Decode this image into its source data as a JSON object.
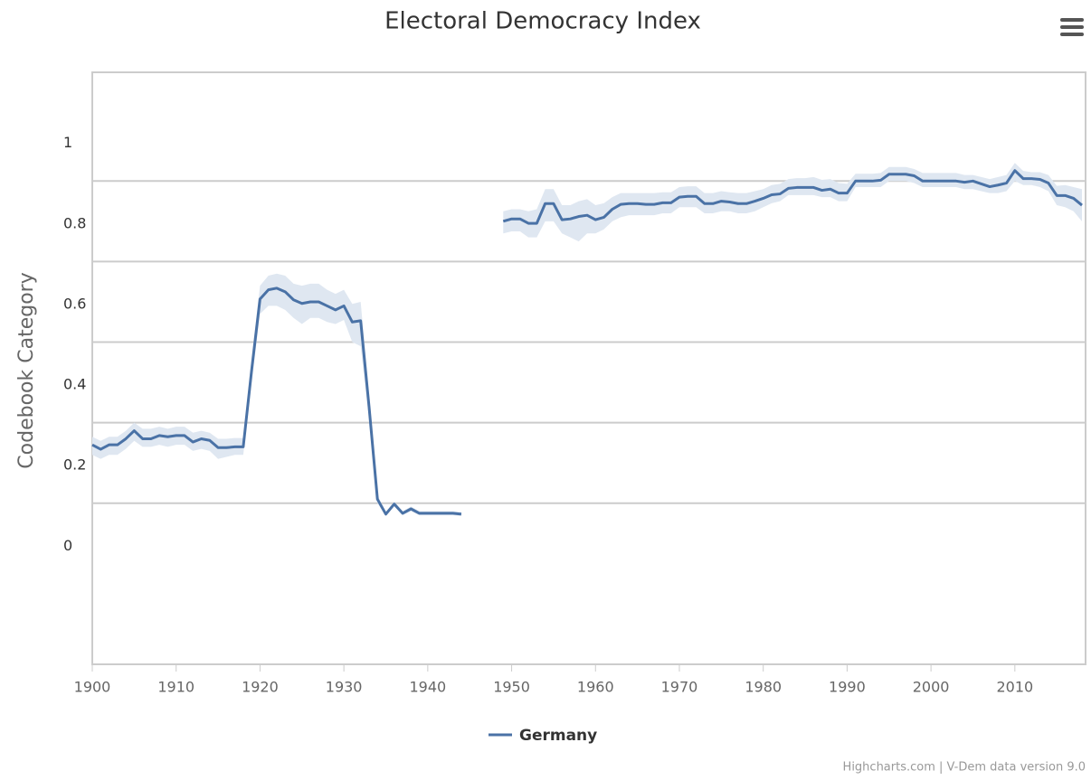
{
  "chart_data": {
    "type": "line",
    "title": "Electoral Democracy Index",
    "y_label": "Codebook Category",
    "credits": "Highcharts.com | V-Dem data version 9.0",
    "x": [
      1900,
      1901,
      1902,
      1903,
      1904,
      1905,
      1906,
      1907,
      1908,
      1909,
      1910,
      1911,
      1912,
      1913,
      1914,
      1915,
      1916,
      1917,
      1918,
      1919,
      1920,
      1921,
      1922,
      1923,
      1924,
      1925,
      1926,
      1927,
      1928,
      1929,
      1930,
      1931,
      1932,
      1933,
      1934,
      1935,
      1936,
      1937,
      1938,
      1939,
      1940,
      1941,
      1942,
      1943,
      1944,
      1945,
      1946,
      1947,
      1948,
      1949,
      1950,
      1951,
      1952,
      1953,
      1954,
      1955,
      1956,
      1957,
      1958,
      1959,
      1960,
      1961,
      1962,
      1963,
      1964,
      1965,
      1966,
      1967,
      1968,
      1969,
      1970,
      1971,
      1972,
      1973,
      1974,
      1975,
      1976,
      1977,
      1978,
      1979,
      1980,
      1981,
      1982,
      1983,
      1984,
      1985,
      1986,
      1987,
      1988,
      1989,
      1990,
      1991,
      1992,
      1993,
      1994,
      1995,
      1996,
      1997,
      1998,
      1999,
      2000,
      2001,
      2002,
      2003,
      2004,
      2005,
      2006,
      2007,
      2008,
      2009,
      2010,
      2011,
      2012,
      2013,
      2014,
      2015,
      2016,
      2017,
      2018
    ],
    "series": [
      {
        "name": "Germany",
        "color": "#4a72a6",
        "band_color": "#dfe7f1",
        "values": [
          0.245,
          0.234,
          0.245,
          0.245,
          0.26,
          0.28,
          0.26,
          0.26,
          0.268,
          0.265,
          0.268,
          0.268,
          0.252,
          0.26,
          0.256,
          0.238,
          0.238,
          0.24,
          0.24,
          0.43,
          0.607,
          0.63,
          0.634,
          0.625,
          0.605,
          0.596,
          0.6,
          0.6,
          0.59,
          0.58,
          0.59,
          0.55,
          0.553,
          0.34,
          0.11,
          0.073,
          0.098,
          0.075,
          0.086,
          0.075,
          0.075,
          0.075,
          0.075,
          0.075,
          0.073,
          null,
          null,
          null,
          null,
          0.8,
          0.806,
          0.806,
          0.795,
          0.795,
          0.844,
          0.844,
          0.804,
          0.806,
          0.812,
          0.815,
          0.804,
          0.81,
          0.83,
          0.842,
          0.844,
          0.844,
          0.842,
          0.842,
          0.846,
          0.846,
          0.86,
          0.862,
          0.862,
          0.844,
          0.844,
          0.85,
          0.848,
          0.844,
          0.844,
          0.85,
          0.857,
          0.866,
          0.868,
          0.882,
          0.884,
          0.884,
          0.884,
          0.877,
          0.88,
          0.87,
          0.87,
          0.9,
          0.9,
          0.9,
          0.902,
          0.917,
          0.917,
          0.917,
          0.913,
          0.9,
          0.9,
          0.9,
          0.9,
          0.9,
          0.897,
          0.9,
          0.893,
          0.886,
          0.89,
          0.895,
          0.926,
          0.906,
          0.906,
          0.904,
          0.895,
          0.864,
          0.864,
          0.857,
          0.84
        ],
        "low": [
          0.22,
          0.21,
          0.22,
          0.22,
          0.235,
          0.255,
          0.24,
          0.24,
          0.245,
          0.24,
          0.245,
          0.245,
          0.23,
          0.235,
          0.23,
          0.21,
          0.215,
          0.22,
          0.22,
          0.4,
          0.57,
          0.59,
          0.59,
          0.58,
          0.56,
          0.545,
          0.56,
          0.56,
          0.55,
          0.545,
          0.555,
          0.5,
          0.49,
          0.31,
          0.1,
          0.068,
          0.092,
          0.07,
          0.08,
          0.07,
          0.07,
          0.07,
          0.07,
          0.07,
          0.068,
          null,
          null,
          null,
          null,
          0.77,
          0.775,
          0.775,
          0.76,
          0.76,
          0.8,
          0.8,
          0.77,
          0.76,
          0.75,
          0.77,
          0.77,
          0.78,
          0.8,
          0.81,
          0.815,
          0.815,
          0.815,
          0.815,
          0.82,
          0.82,
          0.835,
          0.835,
          0.835,
          0.82,
          0.82,
          0.825,
          0.825,
          0.82,
          0.82,
          0.825,
          0.835,
          0.845,
          0.85,
          0.865,
          0.865,
          0.865,
          0.865,
          0.86,
          0.86,
          0.85,
          0.85,
          0.885,
          0.885,
          0.885,
          0.885,
          0.9,
          0.9,
          0.9,
          0.895,
          0.885,
          0.885,
          0.885,
          0.885,
          0.885,
          0.88,
          0.88,
          0.875,
          0.87,
          0.87,
          0.875,
          0.9,
          0.89,
          0.89,
          0.885,
          0.875,
          0.84,
          0.835,
          0.825,
          0.8
        ],
        "high": [
          0.265,
          0.255,
          0.265,
          0.265,
          0.28,
          0.3,
          0.285,
          0.285,
          0.29,
          0.285,
          0.29,
          0.29,
          0.275,
          0.28,
          0.275,
          0.26,
          0.26,
          0.262,
          0.262,
          0.46,
          0.64,
          0.665,
          0.67,
          0.665,
          0.645,
          0.64,
          0.645,
          0.645,
          0.63,
          0.62,
          0.63,
          0.595,
          0.6,
          0.37,
          0.12,
          0.078,
          0.104,
          0.08,
          0.092,
          0.08,
          0.08,
          0.08,
          0.08,
          0.08,
          0.078,
          null,
          null,
          null,
          null,
          0.825,
          0.83,
          0.83,
          0.825,
          0.83,
          0.88,
          0.88,
          0.84,
          0.84,
          0.85,
          0.855,
          0.84,
          0.845,
          0.86,
          0.87,
          0.87,
          0.87,
          0.87,
          0.87,
          0.872,
          0.872,
          0.885,
          0.887,
          0.887,
          0.87,
          0.87,
          0.875,
          0.872,
          0.87,
          0.87,
          0.875,
          0.88,
          0.89,
          0.893,
          0.905,
          0.907,
          0.907,
          0.91,
          0.903,
          0.905,
          0.895,
          0.893,
          0.918,
          0.918,
          0.918,
          0.92,
          0.935,
          0.935,
          0.935,
          0.93,
          0.92,
          0.92,
          0.92,
          0.92,
          0.92,
          0.915,
          0.915,
          0.91,
          0.905,
          0.91,
          0.915,
          0.945,
          0.925,
          0.922,
          0.922,
          0.915,
          0.888,
          0.89,
          0.885,
          0.88
        ]
      }
    ],
    "xlim": [
      1900,
      2018
    ],
    "xticks": [
      1900,
      1910,
      1920,
      1930,
      1940,
      1950,
      1960,
      1970,
      1980,
      1990,
      2000,
      2010
    ],
    "ylim": [
      -0.3,
      1.17
    ],
    "yticks": [
      0,
      0.2,
      0.4,
      0.6,
      0.8,
      1
    ],
    "ygrid": [
      0.1,
      0.3,
      0.5,
      0.7,
      0.9
    ],
    "grid": true,
    "legend": "bottom"
  }
}
